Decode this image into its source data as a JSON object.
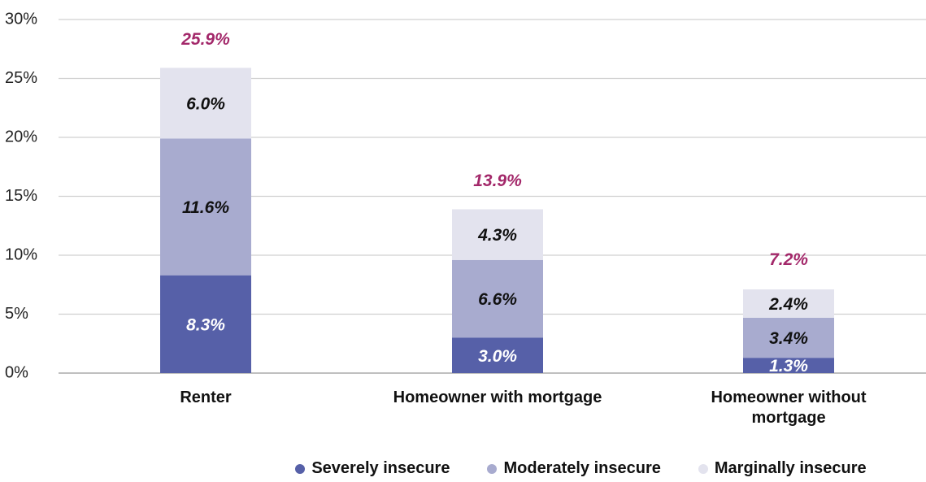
{
  "chart_data": {
    "type": "stacked_bar",
    "categories": [
      "Renter",
      "Homeowner with mortgage",
      "Homeowner without mortgage"
    ],
    "series": [
      {
        "name": "Severely insecure",
        "color": "#5660a8",
        "values": [
          8.3,
          3.0,
          1.3
        ],
        "value_labels": [
          "8.3%",
          "3.0%",
          "1.3%"
        ]
      },
      {
        "name": "Moderately insecure",
        "color": "#a8abcf",
        "values": [
          11.6,
          6.6,
          3.4
        ],
        "value_labels": [
          "11.6%",
          "6.6%",
          "3.4%"
        ]
      },
      {
        "name": "Marginally insecure",
        "color": "#e3e3ee",
        "values": [
          6.0,
          4.3,
          2.4
        ],
        "value_labels": [
          "6.0%",
          "4.3%",
          "2.4%"
        ]
      }
    ],
    "totals": [
      25.9,
      13.9,
      7.2
    ],
    "total_labels": [
      "25.9%",
      "13.9%",
      "7.2%"
    ],
    "ylim": [
      0,
      30
    ],
    "yticks": [
      {
        "value": 0,
        "label": "0%"
      },
      {
        "value": 5,
        "label": "5%"
      },
      {
        "value": 10,
        "label": "10%"
      },
      {
        "value": 15,
        "label": "15%"
      },
      {
        "value": 20,
        "label": "20%"
      },
      {
        "value": 25,
        "label": "25%"
      },
      {
        "value": 30,
        "label": "30%"
      }
    ],
    "grid": true,
    "legend": "bottom"
  }
}
